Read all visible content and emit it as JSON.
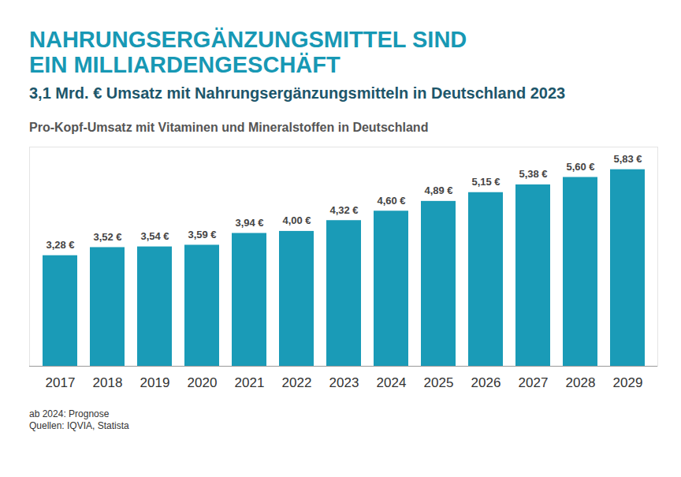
{
  "chart_data": {
    "type": "bar",
    "title": "NAHRUNGSERGÄNZUNGSMITTEL SIND\nEIN MILLIARDENGESCHÄFT",
    "subtitle": "3,1 Mrd. € Umsatz mit Nahrungsergänzungsmitteln in Deutschland 2023",
    "chart_title": "Pro-Kopf-Umsatz mit Vitaminen und Mineralstoffen in Deutschland",
    "categories": [
      "2017",
      "2018",
      "2019",
      "2020",
      "2021",
      "2022",
      "2023",
      "2024",
      "2025",
      "2026",
      "2027",
      "2028",
      "2029"
    ],
    "values": [
      3.28,
      3.52,
      3.54,
      3.59,
      3.94,
      4.0,
      4.32,
      4.6,
      4.89,
      5.15,
      5.38,
      5.6,
      5.83
    ],
    "value_labels": [
      "3,28 €",
      "3,52 €",
      "3,54 €",
      "3,59 €",
      "3,94 €",
      "4,00 €",
      "4,32 €",
      "4,60 €",
      "4,89 €",
      "5,15 €",
      "5,38 €",
      "5,60 €",
      "5,83 €"
    ],
    "color": "#1a9bb7",
    "ylim": [
      0,
      6.5
    ],
    "yticks": [
      0
    ],
    "data_labels": true,
    "tick_labels": "x",
    "grid": false,
    "notes": [
      "ab 2024: Prognose",
      "Quellen: IQVIA, Statista"
    ]
  }
}
